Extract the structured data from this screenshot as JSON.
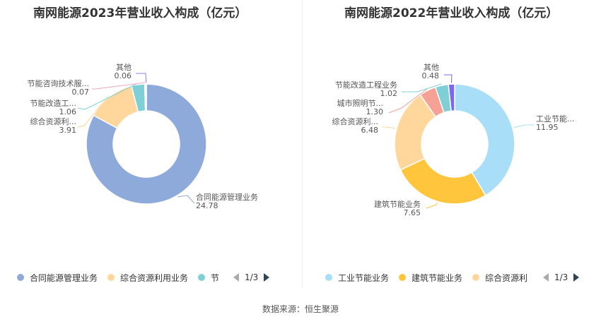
{
  "source": "数据来源：恒生聚源",
  "chart_data": [
    {
      "type": "pie",
      "title": "南网能源2023年营业收入构成（亿元）",
      "slices": [
        {
          "label": "合同能源管理业务",
          "display_label": "合同能源管理业务",
          "value": 24.78,
          "value_text": "24.78",
          "color": "#8eaadb"
        },
        {
          "label": "综合资源利用业务",
          "display_label": "综合资源利...",
          "value": 3.91,
          "value_text": "3.91",
          "color": "#ffd79c"
        },
        {
          "label": "节能改造工程业务",
          "display_label": "节能改造工...",
          "value": 1.06,
          "value_text": "1.06",
          "color": "#7fd0d6"
        },
        {
          "label": "节能咨询技术服务",
          "display_label": "节能咨询技术服...",
          "value": 0.07,
          "value_text": "0.07",
          "color": "#f2a6c4"
        },
        {
          "label": "其他",
          "display_label": "其他",
          "value": 0.06,
          "value_text": "0.06",
          "color": "#8a84e8"
        }
      ],
      "legend": {
        "items": [
          "合同能源管理业务",
          "综合资源利用业务",
          "节"
        ],
        "page": "1/3"
      }
    },
    {
      "type": "pie",
      "title": "南网能源2022年营业收入构成（亿元）",
      "slices": [
        {
          "label": "工业节能业务",
          "display_label": "工业节能...",
          "value": 11.95,
          "value_text": "11.95",
          "color": "#a8def8"
        },
        {
          "label": "建筑节能业务",
          "display_label": "建筑节能业务",
          "value": 7.65,
          "value_text": "7.65",
          "color": "#ffc53d"
        },
        {
          "label": "综合资源利用业务",
          "display_label": "综合资源利...",
          "value": 6.48,
          "value_text": "6.48",
          "color": "#ffd79c"
        },
        {
          "label": "城市照明节能业务",
          "display_label": "城市照明节...",
          "value": 1.3,
          "value_text": "1.30",
          "color": "#f6a195"
        },
        {
          "label": "节能改造工程业务",
          "display_label": "节能改造工程业务",
          "value": 1.02,
          "value_text": "1.02",
          "color": "#7fd0d6"
        },
        {
          "label": "其他",
          "display_label": "其他",
          "value": 0.48,
          "value_text": "0.48",
          "color": "#7b68ee"
        }
      ],
      "legend": {
        "items": [
          "工业节能业务",
          "建筑节能业务",
          "综合资源利"
        ],
        "page": "1/3"
      }
    }
  ]
}
